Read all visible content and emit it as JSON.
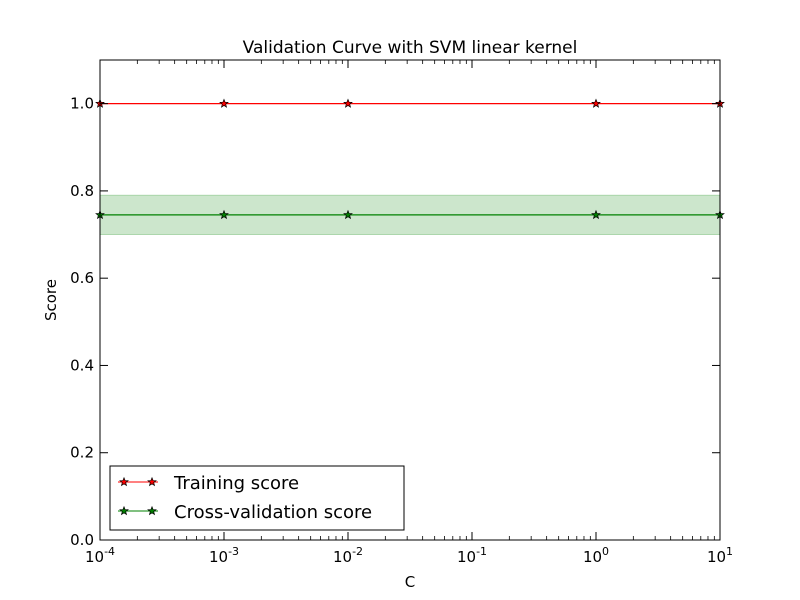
{
  "chart_data": {
    "type": "line",
    "title": "Validation Curve with SVM linear kernel",
    "xlabel": "C",
    "ylabel": "Score",
    "xscale": "log",
    "xlim": [
      0.0001,
      10
    ],
    "ylim": [
      0.0,
      1.1
    ],
    "x": [
      0.0001,
      0.001,
      0.01,
      1,
      10
    ],
    "x_ticks": [
      {
        "base": "10",
        "exp": "-4",
        "value": 0.0001
      },
      {
        "base": "10",
        "exp": "-3",
        "value": 0.001
      },
      {
        "base": "10",
        "exp": "-2",
        "value": 0.01
      },
      {
        "base": "10",
        "exp": "-1",
        "value": 0.1
      },
      {
        "base": "10",
        "exp": "0",
        "value": 1
      },
      {
        "base": "10",
        "exp": "1",
        "value": 10
      }
    ],
    "y_ticks": [
      "0.0",
      "0.2",
      "0.4",
      "0.6",
      "0.8",
      "1.0"
    ],
    "series": [
      {
        "name": "Training score",
        "values": [
          1.0,
          1.0,
          1.0,
          1.0,
          1.0
        ],
        "color": "#ff0000",
        "marker": "star"
      },
      {
        "name": "Cross-validation score",
        "values": [
          0.745,
          0.745,
          0.745,
          0.745,
          0.745
        ],
        "band_lower": [
          0.7,
          0.7,
          0.7,
          0.7,
          0.7
        ],
        "band_upper": [
          0.79,
          0.79,
          0.79,
          0.79,
          0.79
        ],
        "band_color": "#008000",
        "color": "#008000",
        "marker": "star"
      }
    ],
    "legend": "lower-left",
    "grid": false
  }
}
